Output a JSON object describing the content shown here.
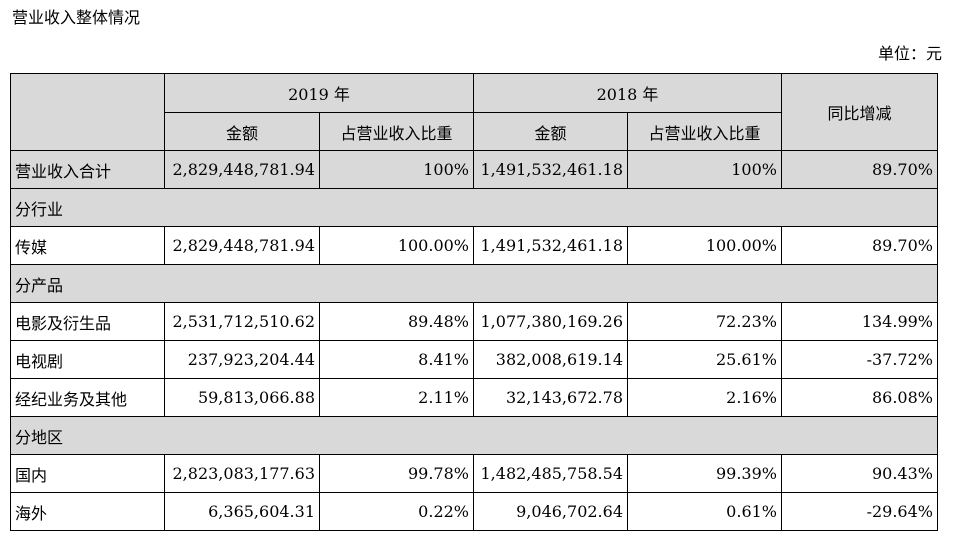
{
  "title": "营业收入整体情况",
  "unit": "单位：元",
  "table": {
    "year_2019": "2019 年",
    "year_2018": "2018 年",
    "yoy": "同比增减",
    "amount": "金额",
    "ratio": "占营业收入比重",
    "total": {
      "label": "营业收入合计",
      "amt2019": "2,829,448,781.94",
      "pct2019": "100%",
      "amt2018": "1,491,532,461.18",
      "pct2018": "100%",
      "yoy": "89.70%"
    },
    "sections": [
      {
        "title": "分行业",
        "rows": [
          {
            "label": "传媒",
            "amt2019": "2,829,448,781.94",
            "pct2019": "100.00%",
            "amt2018": "1,491,532,461.18",
            "pct2018": "100.00%",
            "yoy": "89.70%"
          }
        ]
      },
      {
        "title": "分产品",
        "rows": [
          {
            "label": "电影及衍生品",
            "amt2019": "2,531,712,510.62",
            "pct2019": "89.48%",
            "amt2018": "1,077,380,169.26",
            "pct2018": "72.23%",
            "yoy": "134.99%"
          },
          {
            "label": "电视剧",
            "amt2019": "237,923,204.44",
            "pct2019": "8.41%",
            "amt2018": "382,008,619.14",
            "pct2018": "25.61%",
            "yoy": "-37.72%"
          },
          {
            "label": "经纪业务及其他",
            "amt2019": "59,813,066.88",
            "pct2019": "2.11%",
            "amt2018": "32,143,672.78",
            "pct2018": "2.16%",
            "yoy": "86.08%"
          }
        ]
      },
      {
        "title": "分地区",
        "rows": [
          {
            "label": "国内",
            "amt2019": "2,823,083,177.63",
            "pct2019": "99.78%",
            "amt2018": "1,482,485,758.54",
            "pct2018": "99.39%",
            "yoy": "90.43%"
          },
          {
            "label": "海外",
            "amt2019": "6,365,604.31",
            "pct2019": "0.22%",
            "amt2018": "9,046,702.64",
            "pct2018": "0.61%",
            "yoy": "-29.64%"
          }
        ]
      }
    ]
  }
}
